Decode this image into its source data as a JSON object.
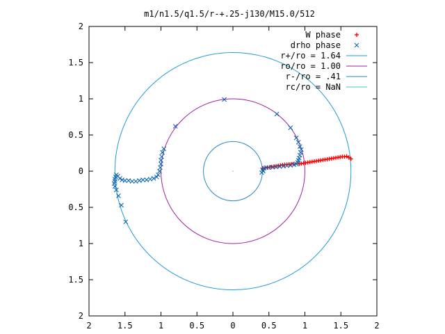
{
  "chart_data": {
    "type": "scatter",
    "title": "m1/n1.5/q1.5/r-+.25-j130/M15.0/512",
    "xlim": [
      -2,
      2
    ],
    "ylim": [
      -2,
      2
    ],
    "x_tick_labels": [
      "2",
      "1.5",
      "1",
      "0.5",
      "0",
      "0.5",
      "1",
      "1.5",
      "2"
    ],
    "y_tick_labels": [
      "2",
      "1.5",
      "1",
      "0.5",
      "0",
      "0.5",
      "1",
      "1.5",
      "2"
    ],
    "legend_position": "top-right",
    "grid": false,
    "series": [
      {
        "name": "W phase",
        "kind": "points",
        "marker": "plus",
        "color": "#ff0000"
      },
      {
        "name": "drho phase",
        "kind": "points",
        "marker": "x",
        "color": "#0060ad"
      },
      {
        "name": "r+/ro = 1.64",
        "kind": "circle",
        "radius": 1.64,
        "color": "#1f9ad6"
      },
      {
        "name": "ro/ro = 1.00",
        "kind": "circle",
        "radius": 1.0,
        "color": "#a020a0"
      },
      {
        "name": "r-/ro = .41",
        "kind": "circle",
        "radius": 0.41,
        "color": "#2a88c0"
      },
      {
        "name": "rc/ro = NaN",
        "kind": "circle",
        "radius": null,
        "color": "#40c0d8"
      }
    ],
    "w_phase_points": [
      [
        0.92,
        0.1
      ],
      [
        0.95,
        0.105
      ],
      [
        0.98,
        0.11
      ],
      [
        1.01,
        0.115
      ],
      [
        1.04,
        0.12
      ],
      [
        1.07,
        0.125
      ],
      [
        1.1,
        0.13
      ],
      [
        1.13,
        0.135
      ],
      [
        1.16,
        0.14
      ],
      [
        1.19,
        0.145
      ],
      [
        1.22,
        0.15
      ],
      [
        1.25,
        0.155
      ],
      [
        1.28,
        0.16
      ],
      [
        1.31,
        0.165
      ],
      [
        1.34,
        0.17
      ],
      [
        1.37,
        0.175
      ],
      [
        1.4,
        0.18
      ],
      [
        1.43,
        0.185
      ],
      [
        1.46,
        0.19
      ],
      [
        1.49,
        0.195
      ],
      [
        1.52,
        0.2
      ],
      [
        1.55,
        0.2
      ],
      [
        1.58,
        0.205
      ],
      [
        1.61,
        0.19
      ],
      [
        1.64,
        0.17
      ],
      [
        0.42,
        0.04
      ],
      [
        0.45,
        0.045
      ],
      [
        0.48,
        0.05
      ],
      [
        0.51,
        0.055
      ],
      [
        0.54,
        0.06
      ],
      [
        0.57,
        0.065
      ],
      [
        0.6,
        0.07
      ],
      [
        0.63,
        0.075
      ],
      [
        0.66,
        0.08
      ],
      [
        0.69,
        0.085
      ],
      [
        0.72,
        0.09
      ],
      [
        0.75,
        0.092
      ],
      [
        0.78,
        0.095
      ],
      [
        0.81,
        0.098
      ],
      [
        0.84,
        0.1
      ]
    ],
    "drho_phase_points": [
      [
        0.41,
        0.02
      ],
      [
        0.42,
        0.0
      ],
      [
        0.4,
        -0.02
      ],
      [
        0.43,
        0.04
      ],
      [
        0.46,
        0.05
      ],
      [
        0.5,
        0.05
      ],
      [
        0.55,
        0.055
      ],
      [
        0.6,
        0.06
      ],
      [
        0.65,
        0.065
      ],
      [
        0.7,
        0.07
      ],
      [
        0.75,
        0.075
      ],
      [
        0.8,
        0.08
      ],
      [
        0.85,
        0.09
      ],
      [
        0.88,
        0.1
      ],
      [
        0.9,
        0.12
      ],
      [
        0.91,
        0.15
      ],
      [
        0.92,
        0.18
      ],
      [
        0.93,
        0.22
      ],
      [
        0.94,
        0.26
      ],
      [
        0.95,
        0.3
      ],
      [
        0.93,
        0.34
      ],
      [
        0.91,
        0.4
      ],
      [
        0.88,
        0.46
      ],
      [
        0.8,
        0.6
      ],
      [
        0.61,
        0.79
      ],
      [
        -0.12,
        0.99
      ],
      [
        -0.8,
        0.62
      ],
      [
        -0.96,
        0.31
      ],
      [
        -0.98,
        0.26
      ],
      [
        -0.99,
        0.2
      ],
      [
        -1.0,
        0.15
      ],
      [
        -1.0,
        0.1
      ],
      [
        -1.01,
        0.05
      ],
      [
        -1.02,
        0.0
      ],
      [
        -1.04,
        -0.05
      ],
      [
        -1.06,
        -0.08
      ],
      [
        -1.1,
        -0.1
      ],
      [
        -1.15,
        -0.11
      ],
      [
        -1.2,
        -0.12
      ],
      [
        -1.25,
        -0.12
      ],
      [
        -1.3,
        -0.13
      ],
      [
        -1.35,
        -0.14
      ],
      [
        -1.4,
        -0.14
      ],
      [
        -1.45,
        -0.13
      ],
      [
        -1.5,
        -0.13
      ],
      [
        -1.54,
        -0.12
      ],
      [
        -1.57,
        -0.1
      ],
      [
        -1.6,
        -0.07
      ],
      [
        -1.62,
        -0.05
      ],
      [
        -1.63,
        -0.08
      ],
      [
        -1.64,
        -0.11
      ],
      [
        -1.64,
        -0.14
      ],
      [
        -1.65,
        -0.17
      ],
      [
        -1.64,
        -0.21
      ],
      [
        -1.62,
        -0.26
      ],
      [
        -1.59,
        -0.34
      ],
      [
        -1.55,
        -0.47
      ],
      [
        -1.49,
        -0.7
      ]
    ]
  }
}
